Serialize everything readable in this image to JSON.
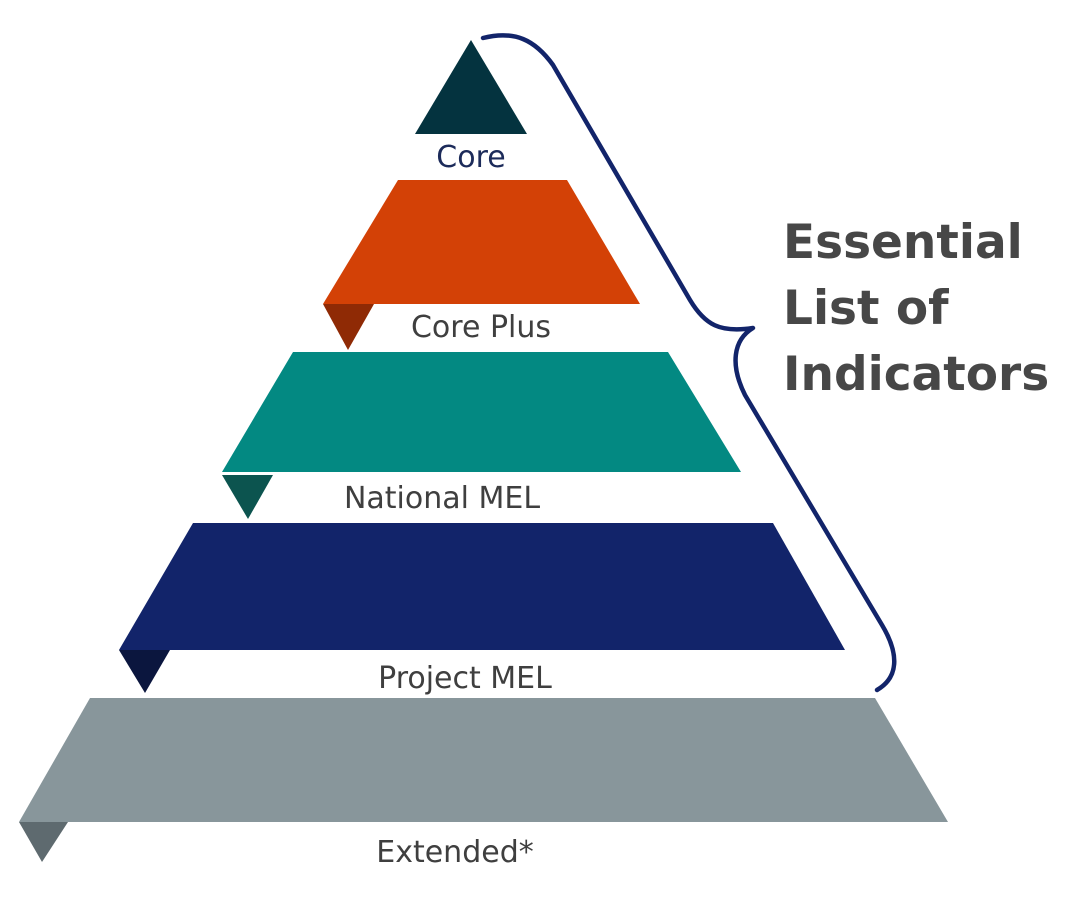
{
  "tiers": [
    {
      "label": "Core",
      "color": "#04333f"
    },
    {
      "label": "Core Plus",
      "color": "#d34106",
      "tab_color": "#8f2a05"
    },
    {
      "label": "National MEL",
      "color": "#038982",
      "tab_color": "#0c544f"
    },
    {
      "label": "Project MEL",
      "color": "#12246a",
      "tab_color": "#0b163e"
    },
    {
      "label": "Extended*",
      "color": "#88969b",
      "tab_color": "#5e6a6f"
    }
  ],
  "bracket": {
    "color": "#12246a",
    "label_lines": [
      "Essential",
      "List of",
      "Indicators"
    ]
  }
}
